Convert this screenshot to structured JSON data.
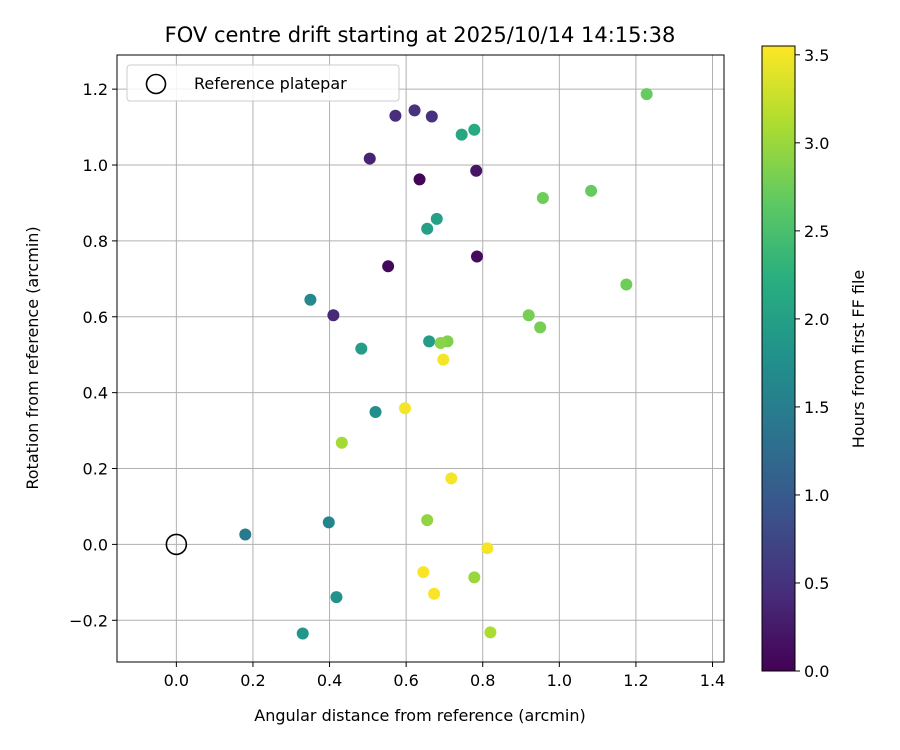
{
  "chart_data": {
    "type": "scatter",
    "title": "FOV centre drift starting at 2025/10/14 14:15:38",
    "xlabel": "Angular distance from reference (arcmin)",
    "ylabel": "Rotation from reference (arcmin)",
    "xlim": [
      -0.155,
      1.43
    ],
    "ylim": [
      -0.31,
      1.29
    ],
    "xticks": [
      0.0,
      0.2,
      0.4,
      0.6,
      0.8,
      1.0,
      1.2,
      1.4
    ],
    "xtick_labels": [
      "0.0",
      "0.2",
      "0.4",
      "0.6",
      "0.8",
      "1.0",
      "1.2",
      "1.4"
    ],
    "yticks": [
      -0.2,
      0.0,
      0.2,
      0.4,
      0.6,
      0.8,
      1.0,
      1.2
    ],
    "ytick_labels": [
      "−0.2",
      "0.0",
      "0.2",
      "0.4",
      "0.6",
      "0.8",
      "1.0",
      "1.2"
    ],
    "grid": true,
    "legend": {
      "position": "top-left",
      "entries": [
        "Reference platepar"
      ]
    },
    "reference_point": {
      "x": 0.0,
      "y": 0.0,
      "label": "Reference platepar"
    },
    "colorbar": {
      "label": "Hours from first FF file",
      "colormap": "viridis",
      "range": [
        0.0,
        3.55
      ],
      "ticks": [
        0.0,
        0.5,
        1.0,
        1.5,
        2.0,
        2.5,
        3.0,
        3.5
      ],
      "tick_labels": [
        "0.0",
        "0.5",
        "1.0",
        "1.5",
        "2.0",
        "2.5",
        "3.0",
        "3.5"
      ]
    },
    "points": [
      {
        "x": 0.635,
        "y": 0.962,
        "t": 0.05
      },
      {
        "x": 0.553,
        "y": 0.733,
        "t": 0.08
      },
      {
        "x": 0.785,
        "y": 0.759,
        "t": 0.1
      },
      {
        "x": 0.783,
        "y": 0.985,
        "t": 0.2
      },
      {
        "x": 0.505,
        "y": 1.017,
        "t": 0.35
      },
      {
        "x": 0.41,
        "y": 0.604,
        "t": 0.4
      },
      {
        "x": 0.572,
        "y": 1.13,
        "t": 0.45
      },
      {
        "x": 0.622,
        "y": 1.144,
        "t": 0.5
      },
      {
        "x": 0.667,
        "y": 1.128,
        "t": 0.5
      },
      {
        "x": 0.18,
        "y": 0.026,
        "t": 1.45
      },
      {
        "x": 0.398,
        "y": 0.058,
        "t": 1.6
      },
      {
        "x": 0.35,
        "y": 0.645,
        "t": 1.65
      },
      {
        "x": 0.52,
        "y": 0.349,
        "t": 1.75
      },
      {
        "x": 0.418,
        "y": -0.139,
        "t": 1.8
      },
      {
        "x": 0.33,
        "y": -0.235,
        "t": 1.85
      },
      {
        "x": 0.483,
        "y": 0.516,
        "t": 1.95
      },
      {
        "x": 0.66,
        "y": 0.535,
        "t": 1.95
      },
      {
        "x": 0.655,
        "y": 0.832,
        "t": 2.0
      },
      {
        "x": 0.68,
        "y": 0.858,
        "t": 2.0
      },
      {
        "x": 0.745,
        "y": 1.08,
        "t": 2.1
      },
      {
        "x": 0.778,
        "y": 1.093,
        "t": 2.15
      },
      {
        "x": 1.228,
        "y": 1.187,
        "t": 2.7
      },
      {
        "x": 1.083,
        "y": 0.932,
        "t": 2.7
      },
      {
        "x": 0.957,
        "y": 0.913,
        "t": 2.75
      },
      {
        "x": 1.175,
        "y": 0.685,
        "t": 2.75
      },
      {
        "x": 0.92,
        "y": 0.604,
        "t": 2.8
      },
      {
        "x": 0.95,
        "y": 0.572,
        "t": 2.8
      },
      {
        "x": 0.708,
        "y": 0.535,
        "t": 2.85
      },
      {
        "x": 0.69,
        "y": 0.531,
        "t": 2.9
      },
      {
        "x": 0.655,
        "y": 0.064,
        "t": 2.95
      },
      {
        "x": 0.778,
        "y": -0.087,
        "t": 3.0
      },
      {
        "x": 0.432,
        "y": 0.268,
        "t": 3.05
      },
      {
        "x": 0.82,
        "y": -0.232,
        "t": 3.1
      },
      {
        "x": 0.697,
        "y": 0.487,
        "t": 3.5
      },
      {
        "x": 0.597,
        "y": 0.359,
        "t": 3.5
      },
      {
        "x": 0.718,
        "y": 0.174,
        "t": 3.5
      },
      {
        "x": 0.812,
        "y": -0.01,
        "t": 3.5
      },
      {
        "x": 0.645,
        "y": -0.073,
        "t": 3.52
      },
      {
        "x": 0.673,
        "y": -0.13,
        "t": 3.52
      }
    ]
  }
}
